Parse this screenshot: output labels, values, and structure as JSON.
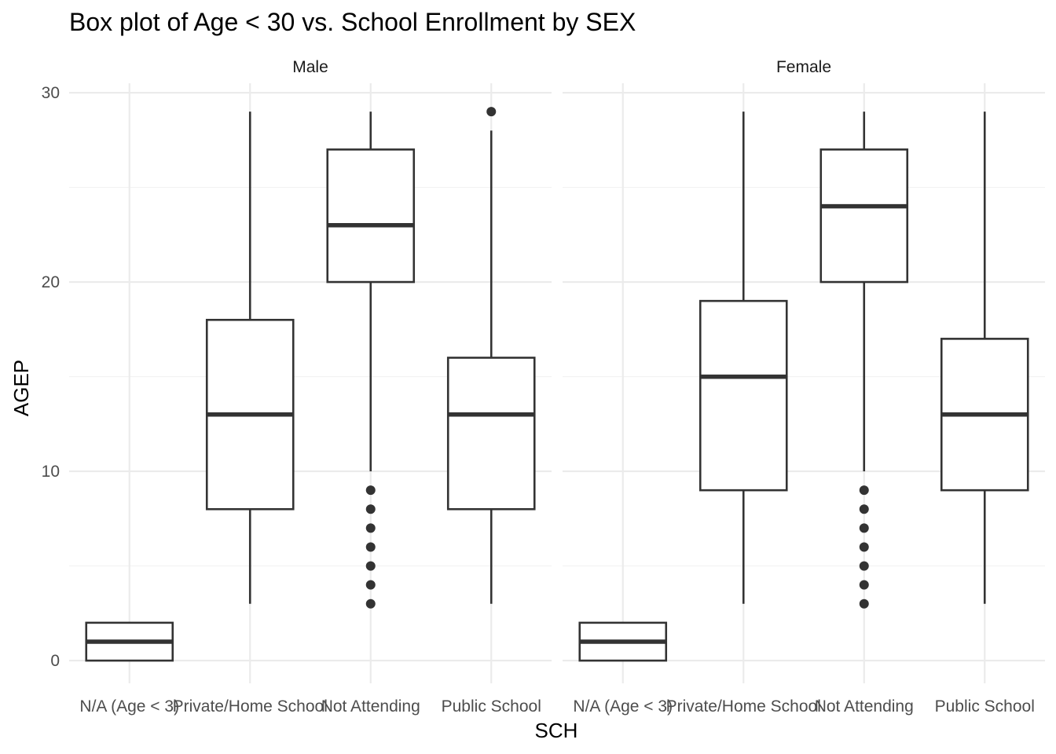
{
  "chart_data": {
    "type": "box",
    "title": "Box plot of Age < 30 vs. School Enrollment by SEX",
    "xlabel": "SCH",
    "ylabel": "AGEP",
    "categories": [
      "N/A (Age < 3)",
      "Private/Home School",
      "Not Attending",
      "Public School"
    ],
    "ylim": [
      -1.2,
      30.5
    ],
    "yticks": [
      0,
      10,
      20,
      30
    ],
    "grid": true,
    "theme": "minimal",
    "panels": [
      {
        "name": "Male",
        "boxes": [
          {
            "category": "N/A (Age < 3)",
            "min": 0,
            "q1": 0,
            "median": 1,
            "q3": 2,
            "max": 2,
            "outliers": []
          },
          {
            "category": "Private/Home School",
            "min": 3,
            "q1": 8,
            "median": 13,
            "q3": 18,
            "max": 29,
            "outliers": []
          },
          {
            "category": "Not Attending",
            "min": 10,
            "q1": 20,
            "median": 23,
            "q3": 27,
            "max": 29,
            "outliers": [
              3,
              4,
              5,
              6,
              7,
              8,
              9
            ]
          },
          {
            "category": "Public School",
            "min": 3,
            "q1": 8,
            "median": 13,
            "q3": 16,
            "max": 28,
            "outliers": [
              29
            ]
          }
        ]
      },
      {
        "name": "Female",
        "boxes": [
          {
            "category": "N/A (Age < 3)",
            "min": 0,
            "q1": 0,
            "median": 1,
            "q3": 2,
            "max": 2,
            "outliers": []
          },
          {
            "category": "Private/Home School",
            "min": 3,
            "q1": 9,
            "median": 15,
            "q3": 19,
            "max": 29,
            "outliers": []
          },
          {
            "category": "Not Attending",
            "min": 10,
            "q1": 20,
            "median": 24,
            "q3": 27,
            "max": 29,
            "outliers": [
              3,
              4,
              5,
              6,
              7,
              8,
              9
            ]
          },
          {
            "category": "Public School",
            "min": 3,
            "q1": 9,
            "median": 13,
            "q3": 17,
            "max": 29,
            "outliers": []
          }
        ]
      }
    ]
  },
  "colors": {
    "box_stroke": "#333333",
    "box_fill": "#ffffff",
    "point": "#333333",
    "grid_major": "#ebebeb",
    "grid_minor": "#f2f2f2",
    "tick_text": "#4d4d4d"
  }
}
